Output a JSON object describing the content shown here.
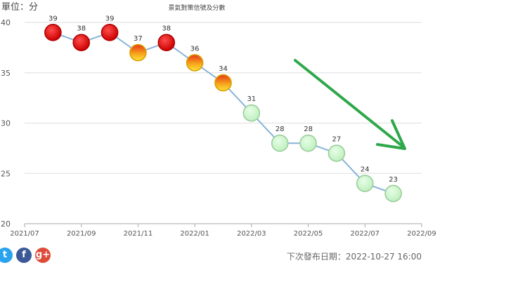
{
  "unit_label": "單位：分",
  "next_release": "下次發布日期：2022-10-27 16:00",
  "social": [
    {
      "name": "twitter-share-icon",
      "glyph": "t",
      "color": "#2aa3ef"
    },
    {
      "name": "facebook-share-icon",
      "glyph": "f",
      "color": "#3b5998"
    },
    {
      "name": "google-plus-share-icon",
      "glyph": "g+",
      "color": "#dd4b39"
    }
  ],
  "colors": {
    "red": "#e00000",
    "yellow_orange": "#f6a21a",
    "green": "#c9f5c9",
    "line": "#88b4d6",
    "arrow": "#2ea84a"
  },
  "chart_data": {
    "type": "line",
    "title": "景氣對策信號及分數",
    "ylim": [
      20,
      40
    ],
    "yticks": [
      20,
      25,
      30,
      35,
      40
    ],
    "xlim": [
      "2021-07",
      "2022-09"
    ],
    "xticks": [
      "2021/07",
      "2021/09",
      "2021/11",
      "2022/01",
      "2022/03",
      "2022/05",
      "2022/07",
      "2022/09"
    ],
    "grid": "horizontal",
    "points": [
      {
        "x": "2021-08",
        "y": 39,
        "signal": "red"
      },
      {
        "x": "2021-09",
        "y": 38,
        "signal": "red"
      },
      {
        "x": "2021-10",
        "y": 39,
        "signal": "red"
      },
      {
        "x": "2021-11",
        "y": 37,
        "signal": "yellow-red"
      },
      {
        "x": "2021-12",
        "y": 38,
        "signal": "red"
      },
      {
        "x": "2022-01",
        "y": 36,
        "signal": "yellow-red"
      },
      {
        "x": "2022-02",
        "y": 34,
        "signal": "yellow-red"
      },
      {
        "x": "2022-03",
        "y": 31,
        "signal": "green"
      },
      {
        "x": "2022-04",
        "y": 28,
        "signal": "green"
      },
      {
        "x": "2022-05",
        "y": 28,
        "signal": "green"
      },
      {
        "x": "2022-06",
        "y": 27,
        "signal": "green"
      },
      {
        "x": "2022-07",
        "y": 24,
        "signal": "green"
      },
      {
        "x": "2022-08",
        "y": 23,
        "signal": "green"
      }
    ],
    "annotation": "green downward trend arrow"
  }
}
